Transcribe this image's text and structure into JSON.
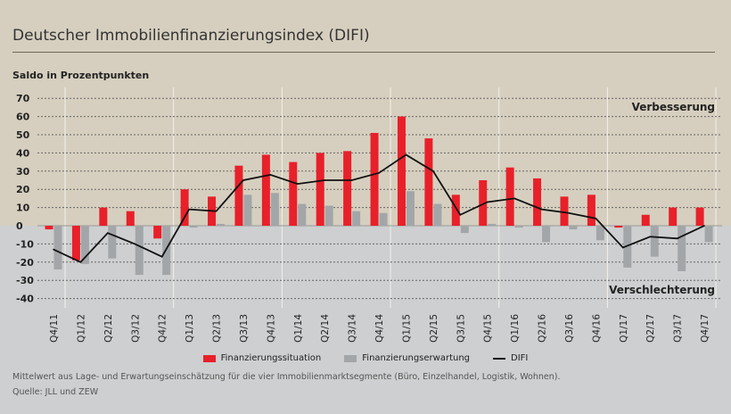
{
  "title": "Deutscher Immobilienfinanzierungsindex (DIFI)",
  "footnote": "Mittelwert aus Lage- und Erwartungseinschätzung für die vier Immobilienmarktsegmente (Büro, Einzelhandel, Logistik, Wohnen).",
  "source": "Quelle: JLL und ZEW",
  "chart_data": {
    "type": "bar",
    "title": "Deutscher Immobilienfinanzierungsindex (DIFI)",
    "ylabel": "Saldo in Prozentpunkten",
    "ylim": [
      -40,
      70
    ],
    "yticks": [
      70,
      60,
      50,
      40,
      30,
      20,
      10,
      0,
      -10,
      -20,
      -30,
      -40
    ],
    "annotations": {
      "top": "Verbesserung",
      "bottom": "Verschlechterung"
    },
    "grid": true,
    "legend_position": "bottom",
    "categories": [
      "Q4/11",
      "Q1/12",
      "Q2/12",
      "Q3/12",
      "Q4/12",
      "Q1/13",
      "Q2/13",
      "Q3/13",
      "Q4/13",
      "Q1/14",
      "Q2/14",
      "Q3/14",
      "Q4/14",
      "Q1/15",
      "Q2/15",
      "Q3/15",
      "Q4/15",
      "Q1/16",
      "Q2/16",
      "Q3/16",
      "Q4/16",
      "Q1/17",
      "Q2/17",
      "Q3/17",
      "Q4/17"
    ],
    "series": [
      {
        "name": "Finanzierungssituation",
        "type": "bar",
        "color": "#e8202a",
        "values": [
          -2,
          -19,
          10,
          8,
          -7,
          20,
          16,
          33,
          39,
          35,
          40,
          41,
          51,
          60,
          48,
          17,
          25,
          32,
          26,
          16,
          17,
          -1,
          6,
          10,
          10
        ]
      },
      {
        "name": "Finanzierungserwartung",
        "type": "bar",
        "color": "#a3a6a8",
        "values": [
          -24,
          -21,
          -18,
          -27,
          -27,
          -1,
          1,
          17,
          18,
          12,
          11,
          8,
          7,
          19,
          12,
          -4,
          1,
          -1,
          -9,
          -2,
          -8,
          -23,
          -17,
          -25,
          -9
        ]
      },
      {
        "name": "DIFI",
        "type": "line",
        "color": "#111111",
        "values": [
          -13,
          -20,
          -4,
          -10,
          -17,
          9,
          8,
          25,
          28,
          23,
          25,
          25,
          29,
          39,
          30,
          6,
          13,
          15,
          9,
          7,
          4,
          -12,
          -6,
          -7,
          0
        ]
      }
    ]
  }
}
